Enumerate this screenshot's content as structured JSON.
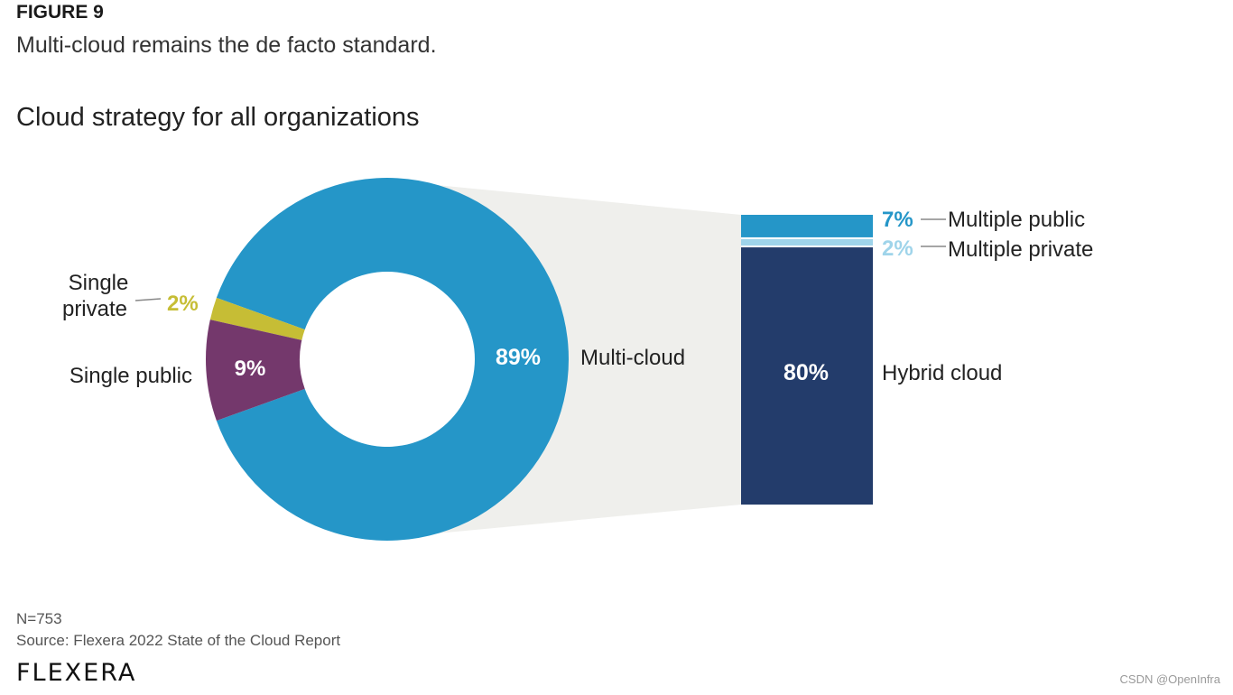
{
  "header": {
    "figure_label": "FIGURE 9",
    "subtitle": "Multi-cloud remains the de facto standard.",
    "title": "Cloud strategy for all organizations"
  },
  "chart_data": {
    "type": "pie",
    "title": "Cloud strategy for all organizations",
    "donut": {
      "slices": [
        {
          "key": "multi",
          "label": "Multi-cloud",
          "value": 89,
          "value_label": "89%",
          "color": "#2596c8"
        },
        {
          "key": "private",
          "label": "Single private",
          "label_lines": [
            "Single",
            "private"
          ],
          "value": 2,
          "value_label": "2%",
          "color": "#c6bd35"
        },
        {
          "key": "public",
          "label": "Single public",
          "value": 9,
          "value_label": "9%",
          "color": "#74386c"
        }
      ]
    },
    "breakdown": {
      "parent": "Multi-cloud",
      "segments": [
        {
          "key": "mpublic",
          "label": "Multiple public",
          "value": 7,
          "value_label": "7%",
          "color": "#2596c8",
          "value_color": "#2596c8"
        },
        {
          "key": "mprivate",
          "label": "Multiple private",
          "value": 2,
          "value_label": "2%",
          "color": "#9fd4ea",
          "value_color": "#9fd4ea"
        },
        {
          "key": "hybrid",
          "label": "Hybrid cloud",
          "value": 80,
          "value_label": "80%",
          "color": "#233c6b",
          "value_color": "#ffffff"
        }
      ]
    },
    "connector_color": "#efefec"
  },
  "footer": {
    "n": "N=753",
    "source": "Source: Flexera 2022 State of the Cloud Report",
    "logo_text": "FLEXERA",
    "watermark": "CSDN @OpenInfra"
  }
}
